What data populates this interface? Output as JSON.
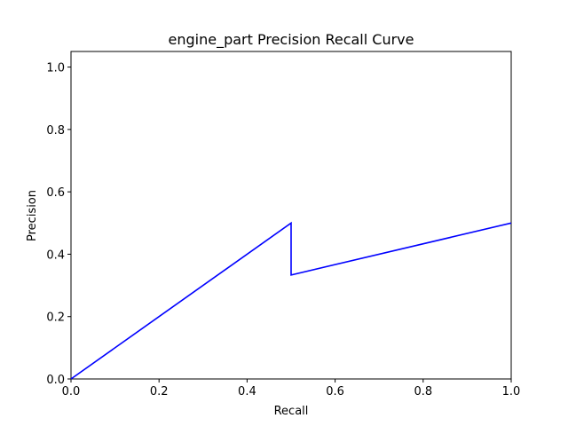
{
  "chart_data": {
    "type": "line",
    "title": "engine_part Precision Recall Curve",
    "xlabel": "Recall",
    "ylabel": "Precision",
    "xlim": [
      0,
      1.0
    ],
    "ylim": [
      0,
      1.05
    ],
    "xticks": [
      0.0,
      0.2,
      0.4,
      0.6,
      0.8,
      1.0
    ],
    "yticks": [
      0.0,
      0.2,
      0.4,
      0.6,
      0.8,
      1.0
    ],
    "grid": false,
    "series": [
      {
        "color": "#0000ff",
        "x": [
          0.0,
          0.5,
          0.5,
          1.0
        ],
        "y": [
          0.0,
          0.5,
          0.3333,
          0.5
        ]
      }
    ]
  }
}
